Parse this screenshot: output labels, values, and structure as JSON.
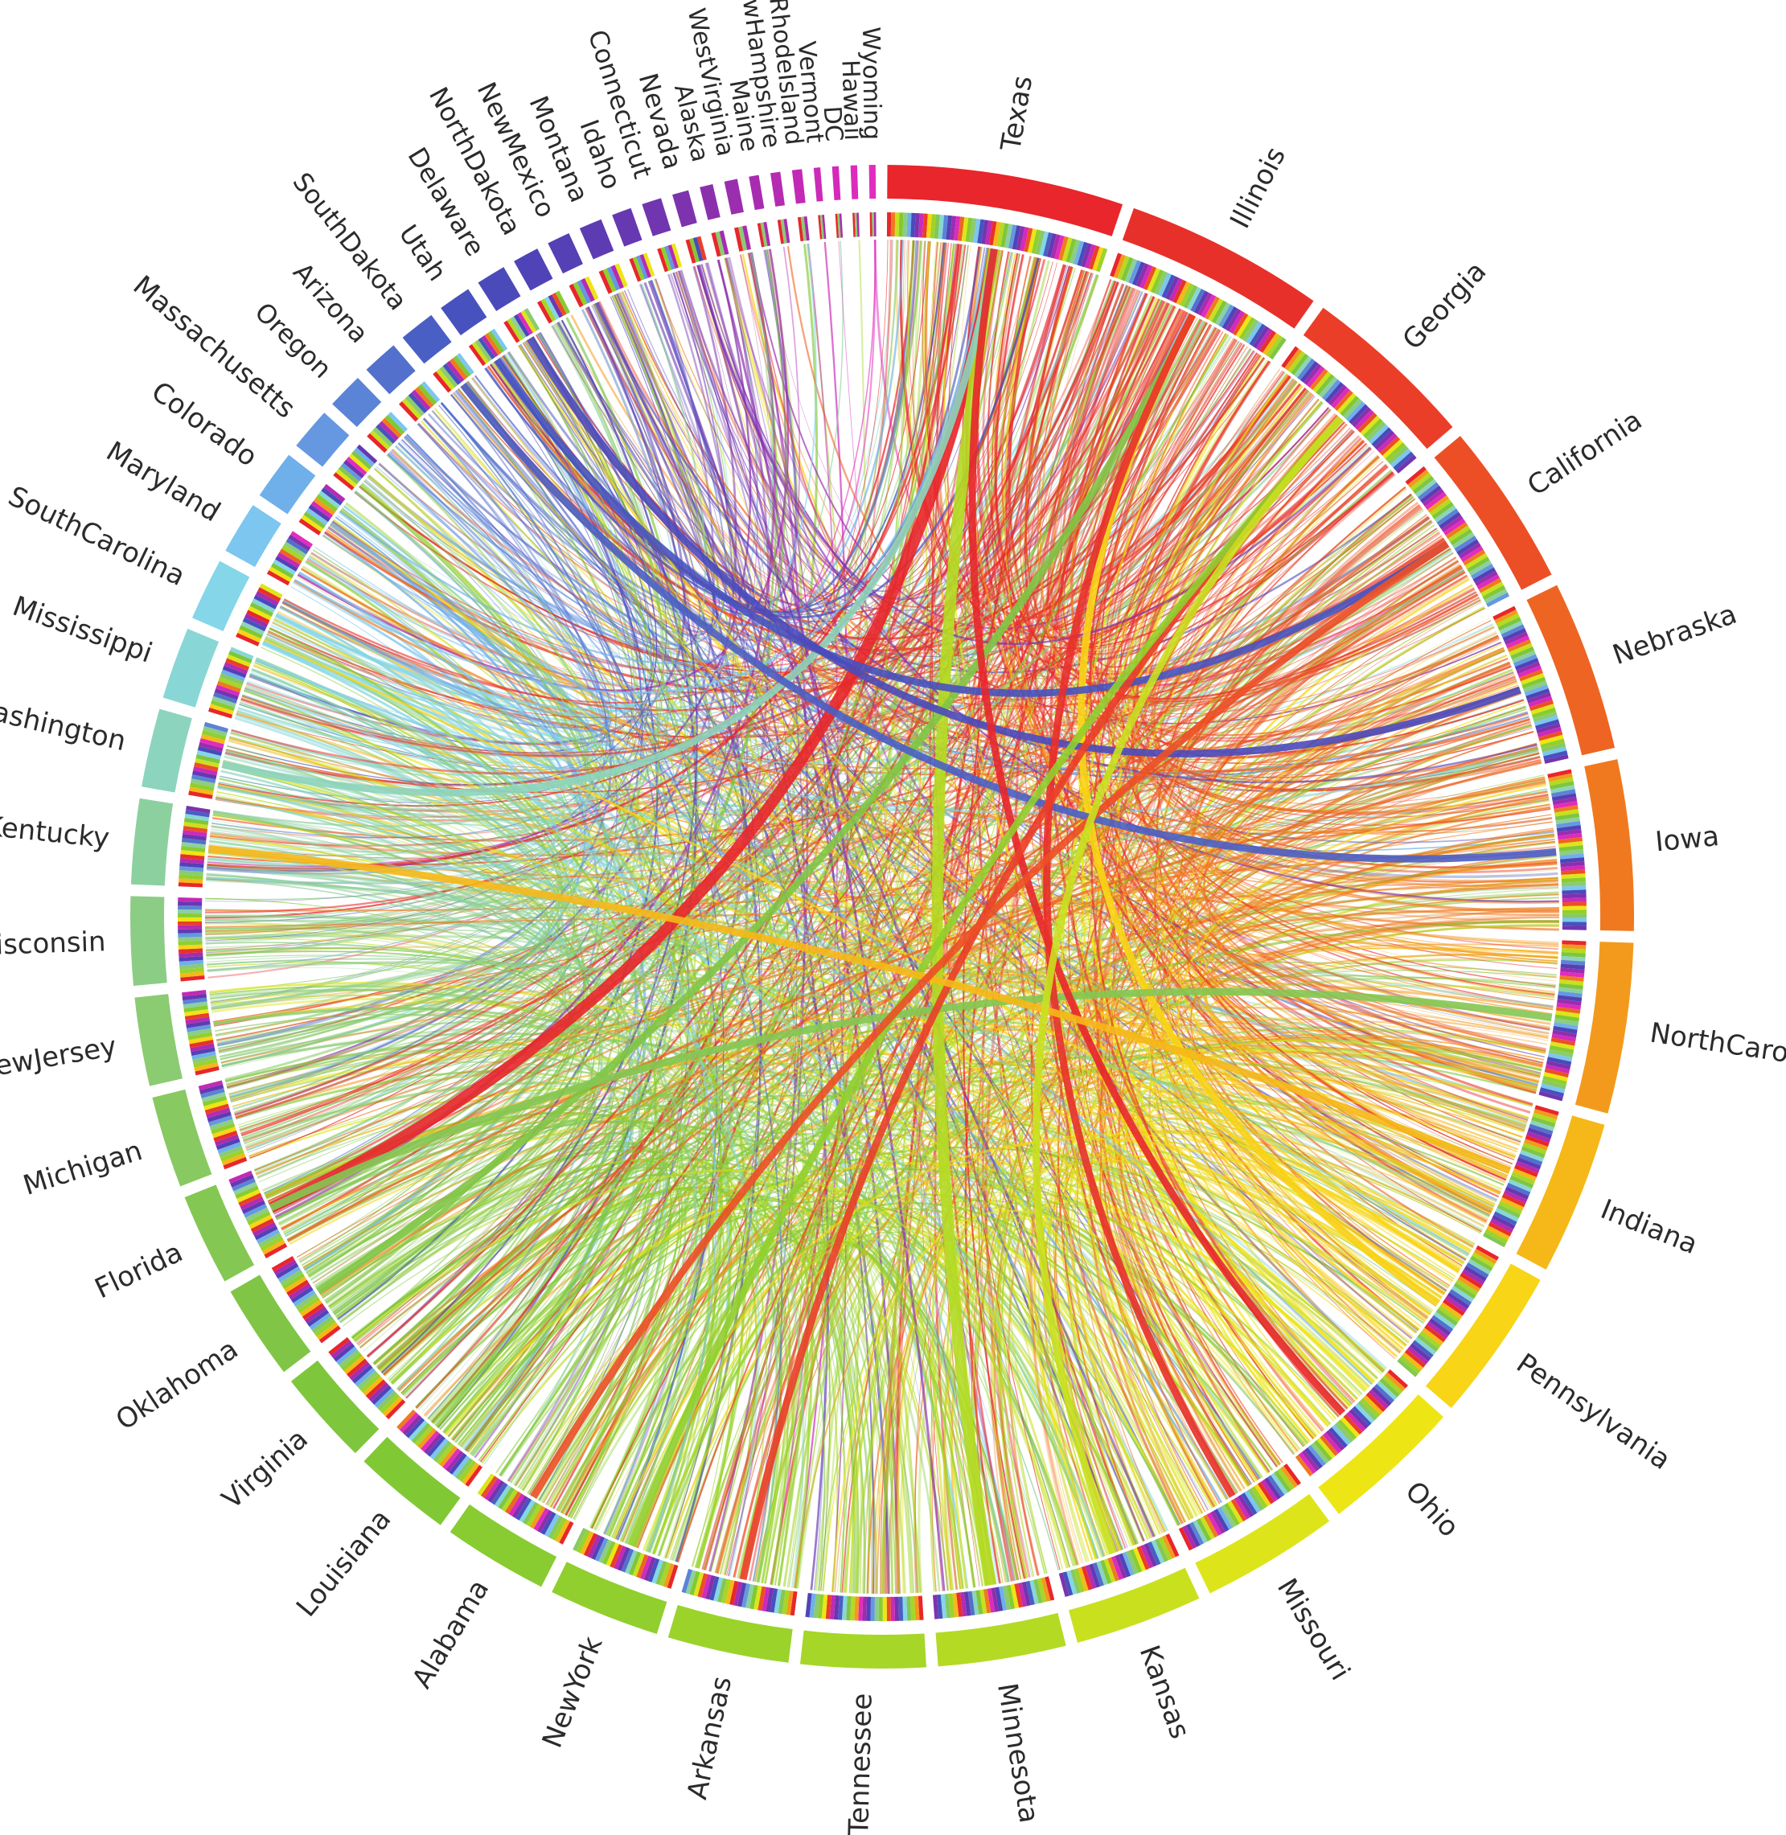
{
  "chart_data": {
    "type": "chord",
    "title": "",
    "direction": "clockwise from top",
    "segments": [
      {
        "name": "Texas",
        "weight": 72,
        "color": "#e8262b"
      },
      {
        "name": "Illinois",
        "weight": 61,
        "color": "#e8302a"
      },
      {
        "name": "Georgia",
        "weight": 53,
        "color": "#ea3e28"
      },
      {
        "name": "California",
        "weight": 50,
        "color": "#ec4f25"
      },
      {
        "name": "Nebraska",
        "weight": 52,
        "color": "#ee6422"
      },
      {
        "name": "Iowa",
        "weight": 52,
        "color": "#f0791f"
      },
      {
        "name": "NorthCarolina",
        "weight": 52,
        "color": "#f39a1c"
      },
      {
        "name": "Indiana",
        "weight": 47,
        "color": "#f6b818"
      },
      {
        "name": "Pennsylvania",
        "weight": 47,
        "color": "#f8d516"
      },
      {
        "name": "Ohio",
        "weight": 43,
        "color": "#eee514"
      },
      {
        "name": "Missouri",
        "weight": 42,
        "color": "#dde51a"
      },
      {
        "name": "Kansas",
        "weight": 39,
        "color": "#c9e01f"
      },
      {
        "name": "Minnesota",
        "weight": 39,
        "color": "#b4da24"
      },
      {
        "name": "Tennessee",
        "weight": 38,
        "color": "#a6d628"
      },
      {
        "name": "Arkansas",
        "weight": 37,
        "color": "#9bd32b"
      },
      {
        "name": "NewYork",
        "weight": 34,
        "color": "#90cf2e"
      },
      {
        "name": "Alabama",
        "weight": 32,
        "color": "#88cc31"
      },
      {
        "name": "Louisiana",
        "weight": 30,
        "color": "#80c935"
      },
      {
        "name": "Virginia",
        "weight": 29,
        "color": "#7ec63c"
      },
      {
        "name": "Oklahoma",
        "weight": 29,
        "color": "#80c545"
      },
      {
        "name": "Florida",
        "weight": 28,
        "color": "#84c752"
      },
      {
        "name": "Michigan",
        "weight": 28,
        "color": "#88c962"
      },
      {
        "name": "NewJersey",
        "weight": 27,
        "color": "#8bcb72"
      },
      {
        "name": "Wisconsin",
        "weight": 27,
        "color": "#8ccd85"
      },
      {
        "name": "Kentucky",
        "weight": 26,
        "color": "#8dd0a0"
      },
      {
        "name": "Washington",
        "weight": 24,
        "color": "#8cd4bd"
      },
      {
        "name": "Mississippi",
        "weight": 22,
        "color": "#88d7d6"
      },
      {
        "name": "SouthCarolina",
        "weight": 19,
        "color": "#84d6e8"
      },
      {
        "name": "Maryland",
        "weight": 16,
        "color": "#7cc6ef"
      },
      {
        "name": "Colorado",
        "weight": 15,
        "color": "#6fb0ea"
      },
      {
        "name": "Massachusetts",
        "weight": 13,
        "color": "#6598e0"
      },
      {
        "name": "Oregon",
        "weight": 11,
        "color": "#5b83d6"
      },
      {
        "name": "Arizona",
        "weight": 11,
        "color": "#5270cc"
      },
      {
        "name": "SouthDakota",
        "weight": 11,
        "color": "#4a5fc4"
      },
      {
        "name": "Utah",
        "weight": 10,
        "color": "#4752be"
      },
      {
        "name": "Delaware",
        "weight": 9,
        "color": "#4a4abb"
      },
      {
        "name": "NorthDakota",
        "weight": 8,
        "color": "#4e44b8"
      },
      {
        "name": "NewMexico",
        "weight": 7,
        "color": "#5540b5"
      },
      {
        "name": "Montana",
        "weight": 7,
        "color": "#5d3cb3"
      },
      {
        "name": "Idaho",
        "weight": 6,
        "color": "#6638b1"
      },
      {
        "name": "Connecticut",
        "weight": 6,
        "color": "#7135af"
      },
      {
        "name": "Nevada",
        "weight": 5,
        "color": "#7d32ae"
      },
      {
        "name": "Alaska",
        "weight": 4,
        "color": "#8b30ad"
      },
      {
        "name": "WestVirginia",
        "weight": 4,
        "color": "#9a2eae"
      },
      {
        "name": "Maine",
        "weight": 3,
        "color": "#a82cb0"
      },
      {
        "name": "NewHampshire",
        "weight": 3,
        "color": "#b52bb2"
      },
      {
        "name": "RhodeIsland",
        "weight": 3,
        "color": "#c22ab5"
      },
      {
        "name": "Vermont",
        "weight": 2,
        "color": "#cc2ab8"
      },
      {
        "name": "DC",
        "weight": 2,
        "color": "#d42abb"
      },
      {
        "name": "Hawaii",
        "weight": 2,
        "color": "#dc2bbd"
      },
      {
        "name": "Wyoming",
        "weight": 2,
        "color": "#e22cbe"
      }
    ],
    "highlight_links": [
      {
        "from": "Texas",
        "to": "Florida"
      },
      {
        "from": "Minnesota",
        "to": "Texas"
      },
      {
        "from": "Oklahoma",
        "to": "Illinois"
      },
      {
        "from": "Pennsylvania",
        "to": "Illinois"
      },
      {
        "from": "Florida",
        "to": "NorthCarolina"
      },
      {
        "from": "Washington",
        "to": "Texas"
      },
      {
        "from": "SouthDakota",
        "to": "Iowa"
      },
      {
        "from": "Utah",
        "to": "California"
      },
      {
        "from": "Delaware",
        "to": "Nebraska"
      },
      {
        "from": "Texas",
        "to": "Ohio"
      },
      {
        "from": "Illinois",
        "to": "Missouri"
      },
      {
        "from": "Georgia",
        "to": "Arkansas"
      },
      {
        "from": "NewYork",
        "to": "Georgia"
      },
      {
        "from": "Indiana",
        "to": "Kentucky"
      },
      {
        "from": "California",
        "to": "Alabama"
      },
      {
        "from": "Kansas",
        "to": "Georgia"
      }
    ]
  }
}
